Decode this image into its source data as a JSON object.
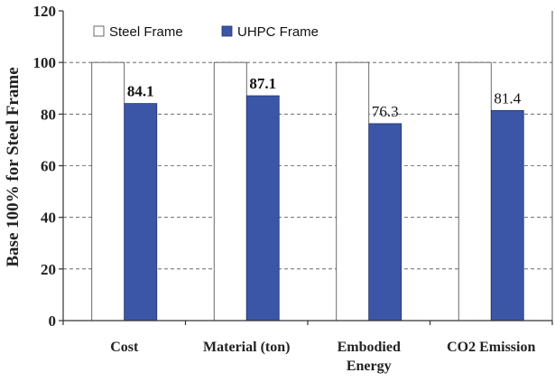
{
  "chart_data": {
    "type": "bar",
    "title": "",
    "xlabel": "",
    "ylabel": "Base 100% for Steel Frame",
    "ylim": [
      0,
      120
    ],
    "yticks": [
      0,
      20,
      40,
      60,
      80,
      100,
      120
    ],
    "grid": "horizontal-dashed",
    "legend_position": "top-left",
    "categories": [
      [
        "Cost"
      ],
      [
        "Material (ton)"
      ],
      [
        "Embodied",
        "Energy"
      ],
      [
        "CO2 Emission"
      ]
    ],
    "series": [
      {
        "name": "Steel Frame",
        "color": "#ffffff",
        "values": [
          100,
          100,
          100,
          100
        ],
        "labels": [
          "",
          "",
          "",
          ""
        ]
      },
      {
        "name": "UHPC Frame",
        "color": "#3b56a6",
        "values": [
          84.1,
          87.1,
          76.3,
          81.4
        ],
        "labels": [
          "84.1",
          "87.1",
          "76.3",
          "81.4"
        ],
        "label_bold": [
          true,
          true,
          false,
          false
        ]
      }
    ]
  }
}
